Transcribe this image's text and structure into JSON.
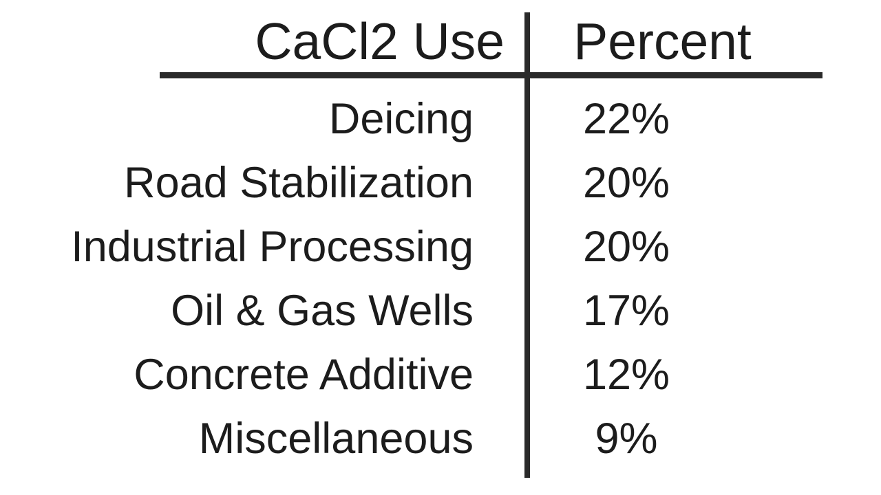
{
  "table": {
    "headers": [
      "CaCl2 Use",
      "Percent"
    ],
    "rows": [
      {
        "use": "Deicing",
        "percent": "22%"
      },
      {
        "use": "Road Stabilization",
        "percent": "20%"
      },
      {
        "use": "Industrial Processing",
        "percent": "20%"
      },
      {
        "use": "Oil & Gas Wells",
        "percent": "17%"
      },
      {
        "use": "Concrete Additive",
        "percent": "12%"
      },
      {
        "use": "Miscellaneous",
        "percent": "9%"
      }
    ]
  },
  "chart_data": {
    "type": "table",
    "title": "",
    "columns": [
      "CaCl2 Use",
      "Percent"
    ],
    "categories": [
      "Deicing",
      "Road Stabilization",
      "Industrial Processing",
      "Oil & Gas Wells",
      "Concrete Additive",
      "Miscellaneous"
    ],
    "values": [
      22,
      20,
      20,
      17,
      12,
      9
    ],
    "value_format": "percent"
  },
  "colors": {
    "text": "#1c1c1c",
    "line": "#2a2a2a",
    "background": "#ffffff"
  }
}
